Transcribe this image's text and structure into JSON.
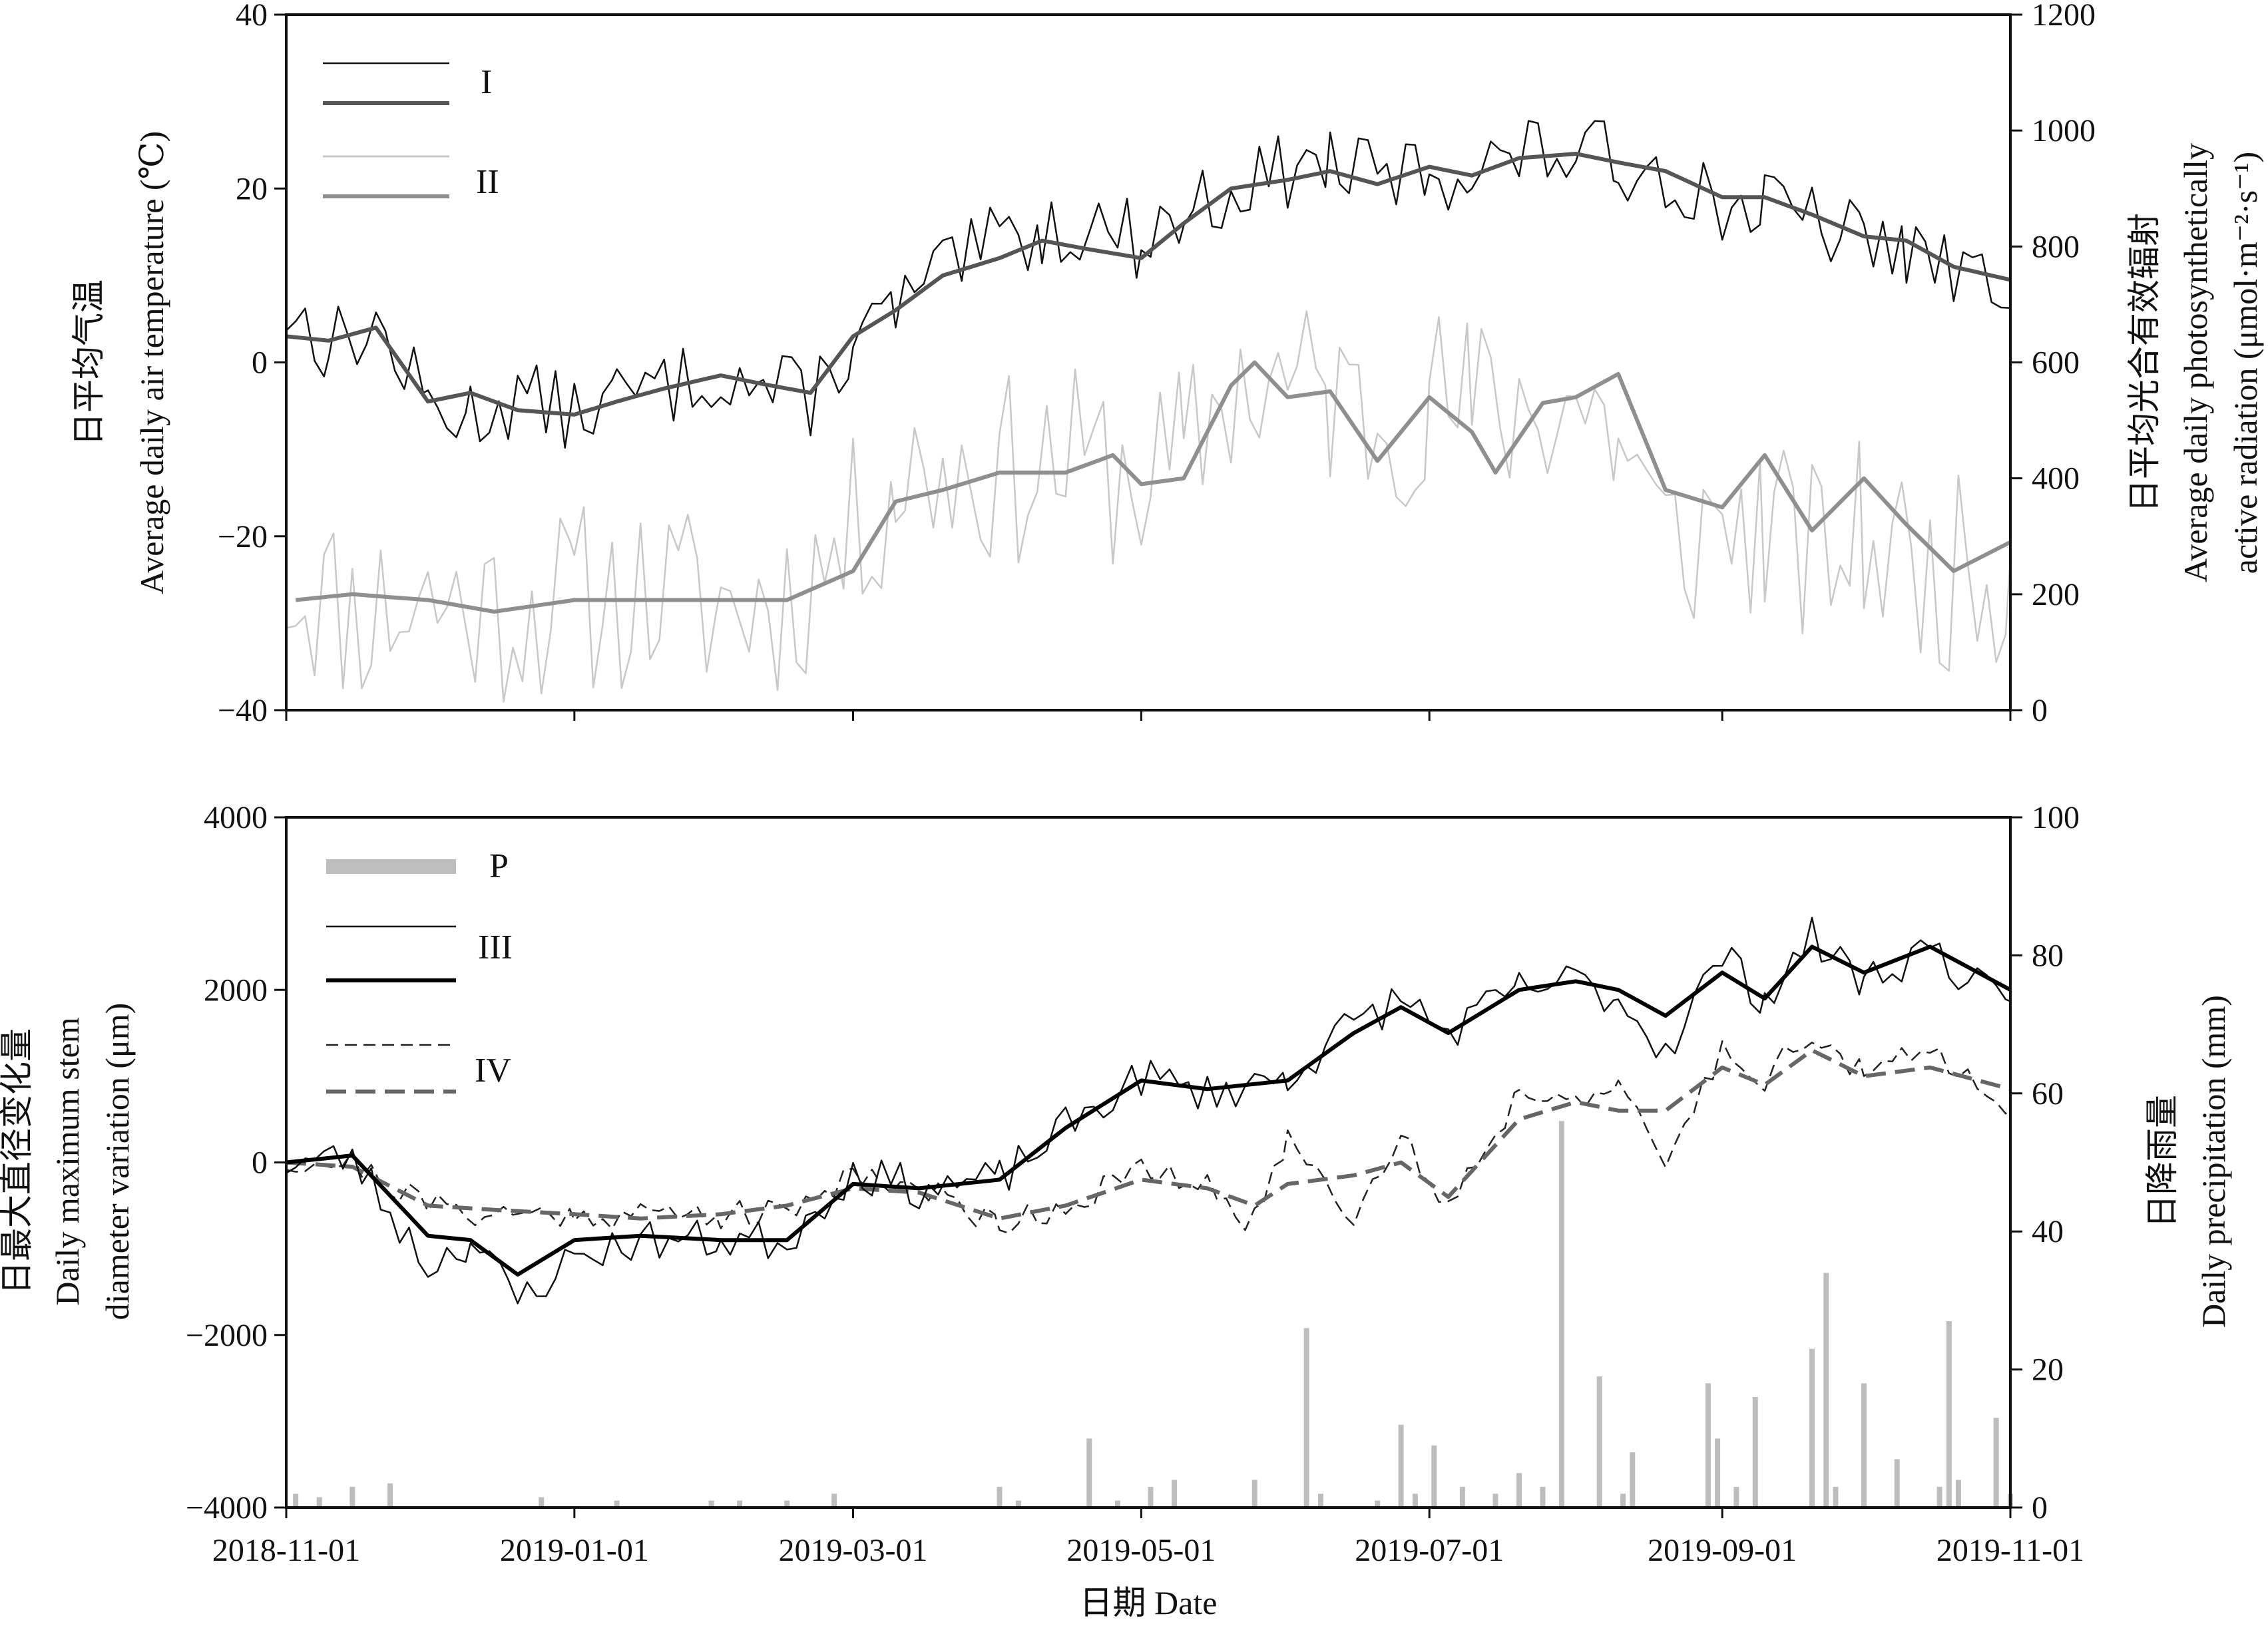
{
  "chart_data": [
    {
      "type": "line",
      "panel": "top",
      "ylabel_cn": "日平均气温",
      "ylabel": "Average daily air temperature (℃)",
      "y2label_cn": "日平均光合有效辐射",
      "y2label": "Average daily photosynthetically",
      "y2label_line2": "active radiation (μmol·m⁻²·s⁻¹)",
      "ylim": [
        -40,
        40
      ],
      "y2lim": [
        0,
        1200
      ],
      "yticks": [
        40,
        20,
        0,
        -20,
        -40
      ],
      "yticks_text": [
        "40",
        "20",
        "0",
        "−20",
        "−40"
      ],
      "y2ticks": [
        1200,
        1000,
        800,
        600,
        400,
        200,
        0
      ],
      "y2ticks_text": [
        "1200",
        "1000",
        "800",
        "600",
        "400",
        "200",
        "0"
      ],
      "xlim": [
        "2018-11-01",
        "2019-11-01"
      ],
      "legend_position": "top-left",
      "legend_label_I": "I",
      "legend_label_II": "II",
      "series": [
        {
          "name": "I",
          "axis": "left",
          "style": "daily",
          "color": "#111111",
          "keys": {
            "2018-11-01": 6,
            "2018-11-10": 2,
            "2018-11-20": 4,
            "2018-12-01": -5,
            "2018-12-10": -6,
            "2018-12-20": -4,
            "2019-01-01": -6,
            "2019-01-10": -4,
            "2019-01-20": -3,
            "2019-02-01": -1,
            "2019-02-10": -3,
            "2019-02-20": -4,
            "2019-03-01": 2,
            "2019-03-10": 6,
            "2019-03-20": 10,
            "2019-04-01": 14,
            "2019-04-10": 15,
            "2019-04-20": 16,
            "2019-05-01": 14,
            "2019-05-10": 17,
            "2019-05-20": 20,
            "2019-06-01": 22,
            "2019-06-10": 23,
            "2019-06-20": 21,
            "2019-07-01": 22,
            "2019-07-10": 22,
            "2019-07-20": 24,
            "2019-08-01": 24,
            "2019-08-10": 23,
            "2019-08-20": 22,
            "2019-09-01": 18,
            "2019-09-10": 18,
            "2019-09-20": 16,
            "2019-10-01": 14,
            "2019-10-10": 13,
            "2019-10-20": 10,
            "2019-11-01": 9
          }
        },
        {
          "name": "I",
          "axis": "left",
          "style": "smoothed",
          "color": "#555555",
          "keys": {
            "2018-11-01": 3,
            "2018-11-10": 2.5,
            "2018-11-20": 4,
            "2018-12-01": -4.5,
            "2018-12-10": -3.5,
            "2018-12-20": -5.5,
            "2019-01-01": -6,
            "2019-01-10": -4.5,
            "2019-01-20": -3,
            "2019-02-01": -1.5,
            "2019-02-10": -2.5,
            "2019-02-20": -3.5,
            "2019-03-01": 3,
            "2019-03-10": 6,
            "2019-03-20": 10,
            "2019-04-01": 12,
            "2019-04-10": 14,
            "2019-04-20": 13,
            "2019-05-01": 12,
            "2019-05-10": 16,
            "2019-05-20": 20,
            "2019-06-01": 21,
            "2019-06-10": 22,
            "2019-06-20": 20.5,
            "2019-07-01": 22.5,
            "2019-07-10": 21.5,
            "2019-07-20": 23.5,
            "2019-08-01": 24,
            "2019-08-10": 23,
            "2019-08-20": 22,
            "2019-09-01": 19,
            "2019-09-10": 19,
            "2019-09-20": 17,
            "2019-10-01": 14.5,
            "2019-10-10": 14,
            "2019-10-20": 11,
            "2019-11-01": 9.5
          }
        },
        {
          "name": "II",
          "axis": "right",
          "style": "daily",
          "color": "#c8c8c8",
          "keys": {
            "2018-11-01": 230,
            "2018-11-15": 170,
            "2018-12-01": 190,
            "2018-12-15": 170,
            "2019-01-01": 190,
            "2019-01-15": 200,
            "2019-02-01": 180,
            "2019-02-15": 190,
            "2019-03-01": 300,
            "2019-03-10": 400,
            "2019-03-20": 420,
            "2019-04-01": 410,
            "2019-04-15": 430,
            "2019-05-01": 400,
            "2019-05-10": 430,
            "2019-05-20": 560,
            "2019-06-01": 560,
            "2019-06-10": 540,
            "2019-06-20": 500,
            "2019-07-01": 540,
            "2019-07-10": 520,
            "2019-07-20": 520,
            "2019-08-01": 540,
            "2019-08-10": 470,
            "2019-08-20": 280,
            "2019-09-01": 320,
            "2019-09-10": 310,
            "2019-09-20": 260,
            "2019-10-01": 300,
            "2019-10-15": 230,
            "2019-11-01": 250
          }
        },
        {
          "name": "II",
          "axis": "right",
          "style": "smoothed",
          "color": "#8f8f8f",
          "keys": {
            "2018-11-03": 190,
            "2018-11-15": 200,
            "2018-12-01": 190,
            "2018-12-15": 170,
            "2019-01-01": 190,
            "2019-01-15": 190,
            "2019-02-01": 190,
            "2019-02-15": 190,
            "2019-03-01": 240,
            "2019-03-10": 360,
            "2019-03-20": 380,
            "2019-04-01": 410,
            "2019-04-15": 410,
            "2019-04-25": 440,
            "2019-05-01": 390,
            "2019-05-10": 400,
            "2019-05-20": 560,
            "2019-05-25": 600,
            "2019-06-01": 540,
            "2019-06-10": 550,
            "2019-06-20": 430,
            "2019-07-01": 540,
            "2019-07-10": 480,
            "2019-07-15": 410,
            "2019-07-25": 530,
            "2019-08-01": 540,
            "2019-08-10": 580,
            "2019-08-20": 380,
            "2019-09-01": 350,
            "2019-09-10": 440,
            "2019-09-20": 310,
            "2019-10-01": 400,
            "2019-10-10": 320,
            "2019-10-20": 240,
            "2019-11-01": 290
          }
        }
      ]
    },
    {
      "type": "line",
      "panel": "bottom",
      "ylabel_cn": "日最大直径变化量",
      "ylabel": "Daily maximum stem",
      "ylabel_line2": "diameter variation (μm)",
      "y2label_cn": "日降雨量",
      "y2label": "Daily precipitation (mm)",
      "ylim": [
        -4000,
        4000
      ],
      "y2lim": [
        0,
        100
      ],
      "yticks": [
        4000,
        2000,
        0,
        -2000,
        -4000
      ],
      "yticks_text": [
        "4000",
        "2000",
        "0",
        "−2000",
        "−4000"
      ],
      "y2ticks": [
        100,
        80,
        60,
        40,
        20,
        0
      ],
      "y2ticks_text": [
        "100",
        "80",
        "60",
        "40",
        "20",
        "0"
      ],
      "xlabel": "日期 Date",
      "xticks": [
        "2018-11-01",
        "2019-01-01",
        "2019-03-01",
        "2019-05-01",
        "2019-07-01",
        "2019-09-01",
        "2019-11-01"
      ],
      "xlim": [
        "2018-11-01",
        "2019-11-01"
      ],
      "legend_position": "top-left",
      "legend_label_P": "P",
      "legend_label_III": "III",
      "legend_label_IV": "IV",
      "series": [
        {
          "name": "III",
          "style": "daily",
          "color": "#111111",
          "keys": {
            "2018-11-01": 0,
            "2018-11-15": 50,
            "2018-12-01": -1200,
            "2018-12-10": -900,
            "2018-12-20": -1600,
            "2019-01-01": -1100,
            "2019-01-15": -900,
            "2019-02-01": -900,
            "2019-02-15": -900,
            "2019-03-01": -100,
            "2019-03-15": -300,
            "2019-04-01": -200,
            "2019-04-15": 400,
            "2019-05-01": 1000,
            "2019-05-15": 800,
            "2019-06-01": 1000,
            "2019-06-15": 1600,
            "2019-06-25": 1900,
            "2019-07-05": 1500,
            "2019-07-20": 2000,
            "2019-08-01": 2100,
            "2019-08-10": 1900,
            "2019-08-20": 1300,
            "2019-09-01": 2400,
            "2019-09-10": 1900,
            "2019-09-20": 2600,
            "2019-10-01": 2100,
            "2019-10-15": 2500,
            "2019-11-01": 1700
          }
        },
        {
          "name": "III",
          "style": "smoothed",
          "color": "#000000",
          "keys": {
            "2018-11-01": 0,
            "2018-11-15": 80,
            "2018-12-01": -850,
            "2018-12-10": -900,
            "2018-12-20": -1300,
            "2019-01-01": -900,
            "2019-01-15": -850,
            "2019-02-01": -900,
            "2019-02-15": -900,
            "2019-03-01": -250,
            "2019-03-15": -300,
            "2019-04-01": -200,
            "2019-04-15": 400,
            "2019-05-01": 950,
            "2019-05-15": 850,
            "2019-06-01": 950,
            "2019-06-15": 1500,
            "2019-06-25": 1800,
            "2019-07-05": 1500,
            "2019-07-20": 2000,
            "2019-08-01": 2100,
            "2019-08-10": 2000,
            "2019-08-20": 1700,
            "2019-09-01": 2200,
            "2019-09-10": 1900,
            "2019-09-20": 2500,
            "2019-10-01": 2200,
            "2019-10-15": 2500,
            "2019-11-01": 2000
          }
        },
        {
          "name": "IV",
          "style": "daily",
          "color": "#222222",
          "keys": {
            "2018-11-01": 0,
            "2018-11-15": 0,
            "2018-12-01": -500,
            "2018-12-15": -600,
            "2019-01-01": -600,
            "2019-01-15": -600,
            "2019-02-01": -600,
            "2019-02-15": -600,
            "2019-03-01": -100,
            "2019-03-15": -300,
            "2019-04-01": -700,
            "2019-04-15": -500,
            "2019-05-01": -100,
            "2019-05-15": -300,
            "2019-05-25": -700,
            "2019-06-01": 300,
            "2019-06-15": -600,
            "2019-06-25": 300,
            "2019-07-05": -500,
            "2019-07-20": 800,
            "2019-08-01": 800,
            "2019-08-10": 800,
            "2019-08-20": 0,
            "2019-09-01": 1300,
            "2019-09-10": 1000,
            "2019-09-20": 1500,
            "2019-10-01": 1000,
            "2019-10-15": 1300,
            "2019-11-01": 700
          }
        },
        {
          "name": "IV",
          "style": "smoothed",
          "color": "#666666",
          "keys": {
            "2018-11-01": 0,
            "2018-11-15": -50,
            "2018-12-01": -500,
            "2018-12-15": -550,
            "2019-01-01": -600,
            "2019-01-15": -650,
            "2019-02-01": -600,
            "2019-02-15": -500,
            "2019-03-01": -300,
            "2019-03-15": -350,
            "2019-04-01": -650,
            "2019-04-15": -500,
            "2019-05-01": -200,
            "2019-05-15": -300,
            "2019-05-25": -500,
            "2019-06-01": -250,
            "2019-06-15": -150,
            "2019-06-25": 0,
            "2019-07-05": -400,
            "2019-07-20": 500,
            "2019-08-01": 700,
            "2019-08-10": 600,
            "2019-08-20": 600,
            "2019-09-01": 1100,
            "2019-09-10": 900,
            "2019-09-20": 1300,
            "2019-10-01": 1000,
            "2019-10-15": 1100,
            "2019-11-01": 850
          }
        },
        {
          "name": "P",
          "style": "bars",
          "color": "#bdbdbd",
          "bars": [
            [
              "2018-11-03",
              2
            ],
            [
              "2018-11-08",
              1.5
            ],
            [
              "2018-11-15",
              3
            ],
            [
              "2018-11-23",
              3.5
            ],
            [
              "2018-12-25",
              1.5
            ],
            [
              "2019-01-10",
              1
            ],
            [
              "2019-01-30",
              1
            ],
            [
              "2019-02-05",
              1
            ],
            [
              "2019-02-15",
              1
            ],
            [
              "2019-02-25",
              2
            ],
            [
              "2019-04-01",
              3
            ],
            [
              "2019-04-05",
              1
            ],
            [
              "2019-04-20",
              10
            ],
            [
              "2019-04-26",
              1
            ],
            [
              "2019-05-03",
              3
            ],
            [
              "2019-05-08",
              4
            ],
            [
              "2019-05-25",
              4
            ],
            [
              "2019-06-05",
              26
            ],
            [
              "2019-06-08",
              2
            ],
            [
              "2019-06-20",
              1
            ],
            [
              "2019-06-25",
              12
            ],
            [
              "2019-06-28",
              2
            ],
            [
              "2019-07-02",
              9
            ],
            [
              "2019-07-08",
              3
            ],
            [
              "2019-07-15",
              2
            ],
            [
              "2019-07-20",
              5
            ],
            [
              "2019-07-25",
              3
            ],
            [
              "2019-07-29",
              56
            ],
            [
              "2019-08-06",
              19
            ],
            [
              "2019-08-11",
              2
            ],
            [
              "2019-08-13",
              8
            ],
            [
              "2019-08-29",
              18
            ],
            [
              "2019-08-31",
              10
            ],
            [
              "2019-09-04",
              3
            ],
            [
              "2019-09-08",
              16
            ],
            [
              "2019-09-20",
              23
            ],
            [
              "2019-09-23",
              34
            ],
            [
              "2019-09-25",
              3
            ],
            [
              "2019-10-01",
              18
            ],
            [
              "2019-10-08",
              7
            ],
            [
              "2019-10-17",
              3
            ],
            [
              "2019-10-19",
              27
            ],
            [
              "2019-10-21",
              4
            ],
            [
              "2019-10-29",
              13
            ],
            [
              "2019-11-01",
              2
            ]
          ]
        }
      ]
    }
  ]
}
